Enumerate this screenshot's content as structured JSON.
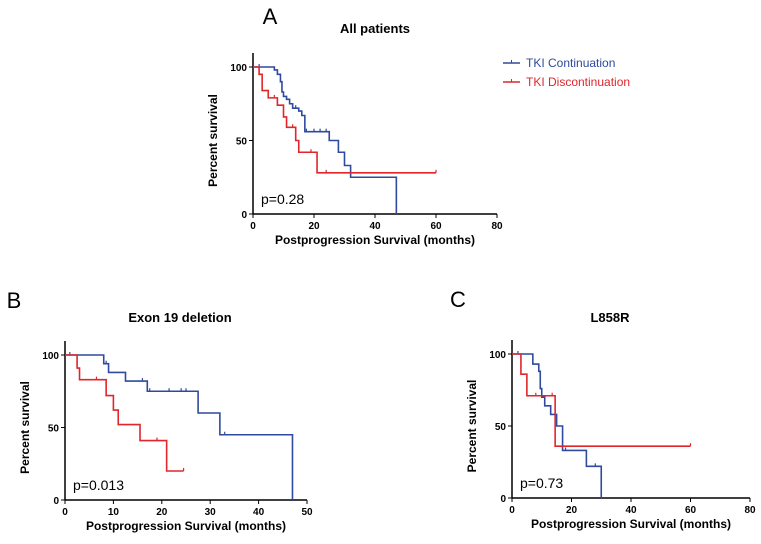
{
  "legend": [
    {
      "name": "TKI Continuation",
      "color": "#2f4a9e"
    },
    {
      "name": "TKI Discontinuation",
      "color": "#e0262b"
    }
  ],
  "chart_data": [
    {
      "type": "line",
      "panel": "A",
      "title": "All patients",
      "xlabel": "Postprogression Survival (months)",
      "ylabel": "Percent survival",
      "xlim": [
        0,
        80
      ],
      "ylim": [
        0,
        100
      ],
      "xticks": [
        0,
        20,
        40,
        60,
        80
      ],
      "yticks": [
        0,
        50,
        100
      ],
      "annotation": "p=0.28",
      "legend_placement": "right",
      "series": [
        {
          "name": "TKI Continuation",
          "steps": [
            [
              0,
              100
            ],
            [
              7,
              98
            ],
            [
              8,
              95
            ],
            [
              9,
              90
            ],
            [
              9.5,
              83
            ],
            [
              10,
              80
            ],
            [
              11,
              78
            ],
            [
              12,
              75
            ],
            [
              13,
              72
            ],
            [
              15,
              70
            ],
            [
              16,
              67
            ],
            [
              17,
              56
            ],
            [
              25,
              50
            ],
            [
              28,
              42
            ],
            [
              30,
              33
            ],
            [
              32,
              25
            ],
            [
              47,
              0
            ]
          ],
          "end": 47,
          "censored": [
            [
              2,
              100
            ],
            [
              14,
              72
            ],
            [
              17.5,
              56
            ],
            [
              20,
              56
            ],
            [
              22,
              56
            ],
            [
              24,
              56
            ]
          ]
        },
        {
          "name": "TKI Discontinuation",
          "steps": [
            [
              0,
              100
            ],
            [
              2,
              95
            ],
            [
              3,
              84
            ],
            [
              5,
              79
            ],
            [
              8,
              74
            ],
            [
              10,
              66
            ],
            [
              11,
              59
            ],
            [
              14,
              50
            ],
            [
              15,
              42
            ],
            [
              21,
              28
            ]
          ],
          "end": 60,
          "censored": [
            [
              7,
              79
            ],
            [
              13,
              59
            ],
            [
              19,
              42
            ],
            [
              24,
              28
            ],
            [
              60,
              28
            ]
          ]
        }
      ]
    },
    {
      "type": "line",
      "panel": "B",
      "title": "Exon 19 deletion",
      "xlabel": "Postprogression Survival (months)",
      "ylabel": "Percent survival",
      "xlim": [
        0,
        50
      ],
      "ylim": [
        0,
        100
      ],
      "xticks": [
        0,
        10,
        20,
        30,
        40,
        50
      ],
      "yticks": [
        0,
        50,
        100
      ],
      "annotation": "p=0.013",
      "series": [
        {
          "name": "TKI Continuation",
          "steps": [
            [
              0,
              100
            ],
            [
              8,
              94
            ],
            [
              9,
              88
            ],
            [
              12.5,
              82
            ],
            [
              17,
              75
            ],
            [
              27.5,
              60
            ],
            [
              32,
              45
            ],
            [
              47,
              0
            ]
          ],
          "end": 47,
          "censored": [
            [
              1,
              100
            ],
            [
              8.5,
              94
            ],
            [
              16,
              82
            ],
            [
              17.5,
              75
            ],
            [
              21.5,
              75
            ],
            [
              24,
              75
            ],
            [
              25,
              75
            ],
            [
              33,
              45
            ]
          ]
        },
        {
          "name": "TKI Discontinuation",
          "steps": [
            [
              0,
              100
            ],
            [
              2.5,
              91
            ],
            [
              3,
              83
            ],
            [
              8.5,
              72
            ],
            [
              10,
              62
            ],
            [
              11,
              52
            ],
            [
              15.5,
              41
            ],
            [
              21,
              20
            ]
          ],
          "end": 24.5,
          "censored": [
            [
              6.5,
              83
            ],
            [
              19,
              41
            ],
            [
              24.5,
              20
            ]
          ]
        }
      ]
    },
    {
      "type": "line",
      "panel": "C",
      "title": "L858R",
      "xlabel": "Postprogression Survival (months)",
      "ylabel": "Percent survival",
      "xlim": [
        0,
        80
      ],
      "ylim": [
        0,
        100
      ],
      "xticks": [
        0,
        20,
        40,
        60,
        80
      ],
      "yticks": [
        0,
        50,
        100
      ],
      "annotation": "p=0.73",
      "series": [
        {
          "name": "TKI Continuation",
          "steps": [
            [
              0,
              100
            ],
            [
              7,
              93
            ],
            [
              9,
              88
            ],
            [
              9.5,
              76
            ],
            [
              10,
              70
            ],
            [
              11,
              64
            ],
            [
              13,
              58
            ],
            [
              15,
              50
            ],
            [
              17,
              33
            ],
            [
              25,
              22
            ],
            [
              30,
              0
            ]
          ],
          "end": 30,
          "censored": [
            [
              2,
              100
            ],
            [
              18,
              33
            ],
            [
              28,
              22
            ]
          ]
        },
        {
          "name": "TKI Discontinuation",
          "steps": [
            [
              0,
              100
            ],
            [
              3,
              86
            ],
            [
              5,
              71
            ],
            [
              14.5,
              36
            ]
          ],
          "end": 60,
          "censored": [
            [
              8,
              71
            ],
            [
              13.5,
              71
            ],
            [
              60,
              36
            ]
          ]
        }
      ]
    }
  ]
}
